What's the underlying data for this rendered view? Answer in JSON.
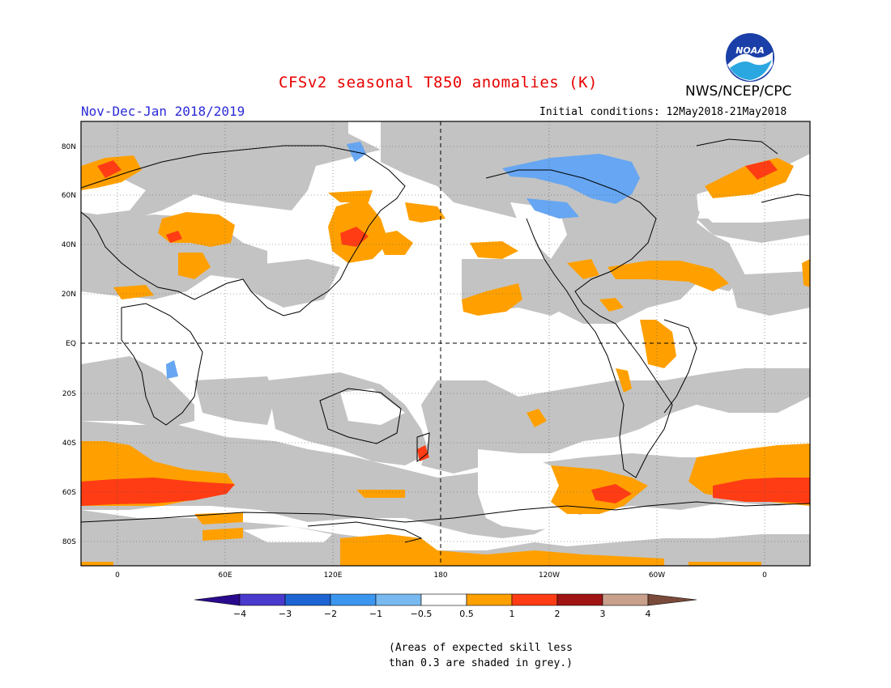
{
  "header": {
    "title": "CFSv2 seasonal T850 anomalies (K)",
    "org": "NWS/NCEP/CPC",
    "season": "Nov-Dec-Jan 2018/2019",
    "initial_conditions": "Initial conditions: 12May2018-21May2018"
  },
  "logo": {
    "name": "noaa-logo",
    "text": "NOAA"
  },
  "axes": {
    "lat_labels": [
      "80N",
      "60N",
      "40N",
      "20N",
      "EQ",
      "20S",
      "40S",
      "60S",
      "80S"
    ],
    "lon_labels": [
      "0",
      "60E",
      "120E",
      "180",
      "120W",
      "60W",
      "0"
    ]
  },
  "colorbar": {
    "colors": [
      "#2a0a8c",
      "#4a3acc",
      "#1e64d2",
      "#3c96f0",
      "#78b9f0",
      "#ffffff",
      "#ffa000",
      "#ff3c14",
      "#a01414",
      "#c8a08c",
      "#7a4a3a"
    ],
    "labels": [
      "−4",
      "−3",
      "−2",
      "−1",
      "−0.5",
      "0.5",
      "1",
      "2",
      "3",
      "4"
    ]
  },
  "legend_colors": {
    "grey": "#c3c3c3",
    "orange": "#ffa000",
    "red": "#ff3c14",
    "blue": "#66a6f2"
  },
  "note": {
    "line1": "(Areas of expected skill less",
    "line2": "than 0.3 are shaded in grey.)"
  }
}
